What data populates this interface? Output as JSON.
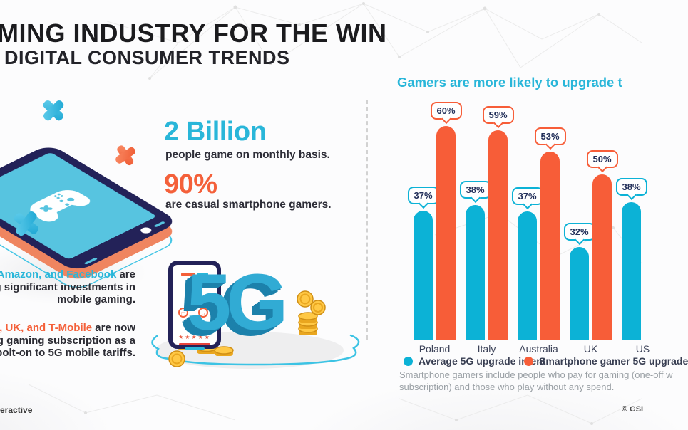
{
  "colors": {
    "cyan_accent": "#29b6d9",
    "orange_accent": "#f4603a",
    "bar_blue": "#0cb2d6",
    "bar_orange": "#f75d38",
    "navy": "#232258",
    "text_dark": "#1b1b1e",
    "footnote_gray": "#9aa0a5"
  },
  "header": {
    "title": "MING INDUSTRY FOR THE WIN",
    "subtitle": "DIGITAL CONSUMER TRENDS"
  },
  "stats": {
    "stat1_value": "2 Billion",
    "stat1_caption": "people game on monthly basis.",
    "stat2_value": "90%",
    "stat2_caption": "are casual smartphone gamers."
  },
  "notes": {
    "note1_highlight": "Amazon, and Facebook",
    "note1_rest": " are",
    "note1_line2": "ng significant investments in",
    "note1_line3": "mobile gaming.",
    "note2_highlight": "e, UK, and T-Mobile",
    "note2_rest": " are now",
    "note2_line2": "ng gaming subscription as a",
    "note2_line3": "bolt-on to 5G mobile tariffs."
  },
  "illustration": {
    "five_g_label": "5G",
    "pad_top": "△",
    "pad_left": "□",
    "pad_right": "○",
    "pad_bottom": "✕",
    "stars": "★★★★★"
  },
  "chart": {
    "footnote_line1": "Smartphone gamers include people who pay for gaming (one-off w",
    "footnote_line2": "subscription) and those who play without any spend."
  },
  "chart_data": {
    "type": "bar",
    "title": "Gamers are more likely to upgrade t",
    "categories": [
      "Poland",
      "Italy",
      "Australia",
      "UK",
      "US"
    ],
    "series": [
      {
        "name": "Average 5G upgrade intent",
        "color": "#0cb2d6",
        "values": [
          37,
          38,
          37,
          32,
          38
        ]
      },
      {
        "name": "Smartphone gamer 5G upgrade",
        "color": "#f75d38",
        "values": [
          60,
          59,
          53,
          50,
          null
        ]
      }
    ],
    "unit": "%",
    "ylim": [
      0,
      70
    ],
    "grid": false,
    "axis_visible": false,
    "legend_position": "bottom",
    "note": "rightmost (US) orange bar is cut off by the image edge"
  },
  "footer": {
    "left": "eractive",
    "right": "© GSI"
  }
}
